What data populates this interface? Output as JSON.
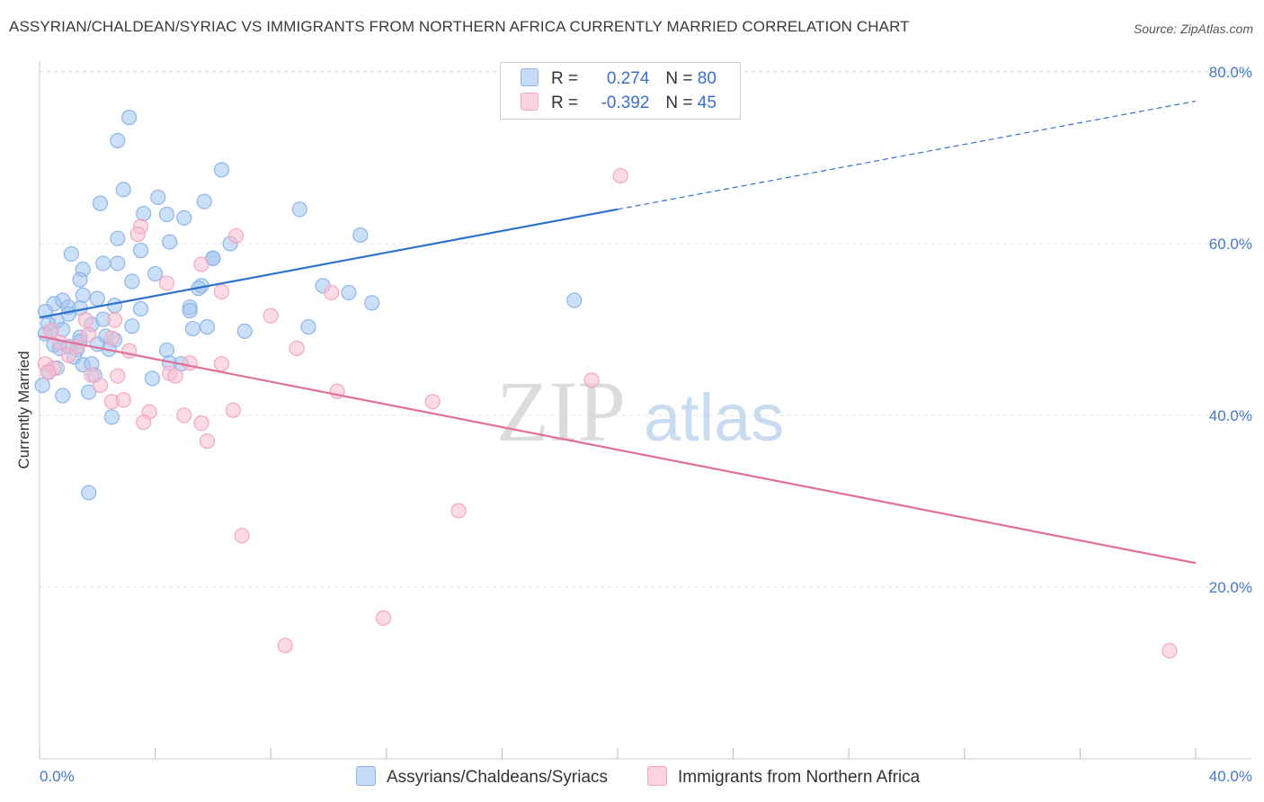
{
  "title": "ASSYRIAN/CHALDEAN/SYRIAC VS IMMIGRANTS FROM NORTHERN AFRICA CURRENTLY MARRIED CORRELATION CHART",
  "source": "Source: ZipAtlas.com",
  "legend": {
    "row1": {
      "r_label": "R =",
      "r_value": "0.274",
      "n_label": "N =",
      "n_value": "80"
    },
    "row2": {
      "r_label": "R =",
      "r_value": "-0.392",
      "n_label": "N =",
      "n_value": "45"
    }
  },
  "bottom_legend": {
    "series1": "Assyrians/Chaldeans/Syriacs",
    "series2": "Immigrants from Northern Africa"
  },
  "watermark": {
    "zip": "ZIP",
    "atlas": "atlas"
  },
  "chart_data": {
    "type": "scatter",
    "title": "ASSYRIAN/CHALDEAN/SYRIAC VS IMMIGRANTS FROM NORTHERN AFRICA CURRENTLY MARRIED CORRELATION CHART",
    "xlabel": "",
    "ylabel": "Currently Married",
    "xlim": [
      0,
      40
    ],
    "ylim": [
      0,
      82
    ],
    "x_tick_labels": [
      "0.0%",
      "40.0%"
    ],
    "y_ticks": [
      20,
      40,
      60,
      80
    ],
    "y_tick_labels": [
      "20.0%",
      "40.0%",
      "60.0%",
      "80.0%"
    ],
    "grid": true,
    "colors": {
      "series1": "#8fb6e8",
      "series2": "#f3a7c0",
      "line1": "#2e72cc",
      "line2": "#e0709a",
      "tick": "#4477cc"
    },
    "series": [
      {
        "name": "Assyrians/Chaldeans/Syriacs",
        "points": [
          [
            3.1,
            74.7
          ],
          [
            2.7,
            72.0
          ],
          [
            6.3,
            68.6
          ],
          [
            2.9,
            66.3
          ],
          [
            2.1,
            64.7
          ],
          [
            4.1,
            65.4
          ],
          [
            5.7,
            64.9
          ],
          [
            4.4,
            63.4
          ],
          [
            5.0,
            63.0
          ],
          [
            3.6,
            63.5
          ],
          [
            9.0,
            64.0
          ],
          [
            11.1,
            61.0
          ],
          [
            2.7,
            60.6
          ],
          [
            4.5,
            60.2
          ],
          [
            6.6,
            60.0
          ],
          [
            1.1,
            58.8
          ],
          [
            3.5,
            59.2
          ],
          [
            2.2,
            57.7
          ],
          [
            2.7,
            57.7
          ],
          [
            6.0,
            58.3
          ],
          [
            1.5,
            57.0
          ],
          [
            4.0,
            56.5
          ],
          [
            1.4,
            55.8
          ],
          [
            3.2,
            55.6
          ],
          [
            5.6,
            55.1
          ],
          [
            5.5,
            54.8
          ],
          [
            9.8,
            55.1
          ],
          [
            10.7,
            54.3
          ],
          [
            1.5,
            54.0
          ],
          [
            2.0,
            53.6
          ],
          [
            0.8,
            53.4
          ],
          [
            0.5,
            53.0
          ],
          [
            1.0,
            52.6
          ],
          [
            1.4,
            52.5
          ],
          [
            2.6,
            52.8
          ],
          [
            5.2,
            52.6
          ],
          [
            5.2,
            52.2
          ],
          [
            11.5,
            53.1
          ],
          [
            18.5,
            53.4
          ],
          [
            0.2,
            52.1
          ],
          [
            0.6,
            51.0
          ],
          [
            1.8,
            50.6
          ],
          [
            2.2,
            51.2
          ],
          [
            3.2,
            50.4
          ],
          [
            5.3,
            50.1
          ],
          [
            5.8,
            50.3
          ],
          [
            7.1,
            49.8
          ],
          [
            9.3,
            50.3
          ],
          [
            0.4,
            49.8
          ],
          [
            0.2,
            49.5
          ],
          [
            0.8,
            50.0
          ],
          [
            1.4,
            49.1
          ],
          [
            2.3,
            49.2
          ],
          [
            2.6,
            48.8
          ],
          [
            0.5,
            48.2
          ],
          [
            0.7,
            47.8
          ],
          [
            1.0,
            48.0
          ],
          [
            1.3,
            47.7
          ],
          [
            2.4,
            47.7
          ],
          [
            4.4,
            47.6
          ],
          [
            1.2,
            46.8
          ],
          [
            1.5,
            45.9
          ],
          [
            1.8,
            46.0
          ],
          [
            4.5,
            46.1
          ],
          [
            4.9,
            46.0
          ],
          [
            1.9,
            44.7
          ],
          [
            3.9,
            44.3
          ],
          [
            0.3,
            45.1
          ],
          [
            0.1,
            43.5
          ],
          [
            0.8,
            42.3
          ],
          [
            1.7,
            42.7
          ],
          [
            2.5,
            39.8
          ],
          [
            1.7,
            31.0
          ],
          [
            6.0,
            58.3
          ],
          [
            0.3,
            50.7
          ],
          [
            2.0,
            48.3
          ],
          [
            1.0,
            51.8
          ],
          [
            3.5,
            52.4
          ],
          [
            0.6,
            45.5
          ],
          [
            1.4,
            48.6
          ]
        ]
      },
      {
        "name": "Immigrants from Northern Africa",
        "points": [
          [
            20.1,
            67.9
          ],
          [
            3.5,
            62.0
          ],
          [
            3.4,
            61.1
          ],
          [
            6.8,
            60.9
          ],
          [
            5.6,
            57.6
          ],
          [
            4.4,
            55.4
          ],
          [
            6.3,
            54.4
          ],
          [
            10.1,
            54.3
          ],
          [
            8.0,
            51.6
          ],
          [
            2.6,
            51.1
          ],
          [
            0.4,
            49.9
          ],
          [
            1.7,
            49.4
          ],
          [
            2.5,
            49.0
          ],
          [
            0.7,
            48.5
          ],
          [
            1.3,
            48.0
          ],
          [
            3.1,
            47.5
          ],
          [
            8.9,
            47.8
          ],
          [
            1.0,
            47.0
          ],
          [
            5.2,
            46.1
          ],
          [
            6.3,
            46.0
          ],
          [
            0.2,
            46.0
          ],
          [
            0.5,
            45.5
          ],
          [
            0.3,
            45.0
          ],
          [
            1.8,
            44.7
          ],
          [
            4.5,
            44.9
          ],
          [
            4.7,
            44.6
          ],
          [
            19.1,
            44.1
          ],
          [
            10.3,
            42.8
          ],
          [
            2.5,
            41.6
          ],
          [
            2.9,
            41.8
          ],
          [
            13.6,
            41.6
          ],
          [
            3.8,
            40.4
          ],
          [
            6.7,
            40.6
          ],
          [
            5.0,
            40.0
          ],
          [
            3.6,
            39.2
          ],
          [
            5.6,
            39.1
          ],
          [
            5.8,
            37.0
          ],
          [
            14.5,
            28.9
          ],
          [
            7.0,
            26.0
          ],
          [
            11.9,
            16.4
          ],
          [
            8.5,
            13.2
          ],
          [
            39.1,
            12.6
          ],
          [
            2.7,
            44.6
          ],
          [
            1.6,
            51.1
          ],
          [
            2.1,
            43.5
          ]
        ]
      }
    ],
    "trend_lines": [
      {
        "series": "Assyrians/Chaldeans/Syriacs",
        "solid_from": [
          0,
          51.4
        ],
        "solid_to": [
          20,
          64.0
        ],
        "dashed_to": [
          40,
          76.6
        ]
      },
      {
        "series": "Immigrants from Northern Africa",
        "from": [
          0,
          49.2
        ],
        "to": [
          40,
          22.8
        ]
      }
    ]
  }
}
